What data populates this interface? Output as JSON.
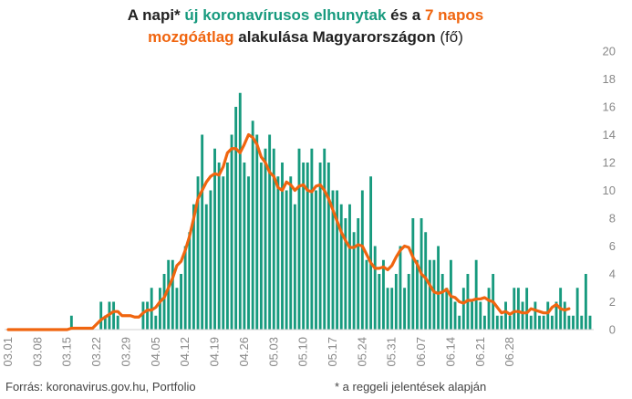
{
  "title": {
    "p1": "A napi* ",
    "p2": "új koronavírusos elhunytak",
    "p3": " és a ",
    "p4": "7 napos",
    "p5": "mozgóátlag",
    "p6": " alakulása Magyarországon",
    "p7": " (fő)"
  },
  "footer": {
    "source": "Forrás: koronavirus.gov.hu, Portfolio",
    "note": "* a reggeli jelentések alapján"
  },
  "colors": {
    "bars": "#179a7e",
    "line": "#f0650f",
    "axis_text": "#888888"
  },
  "chart_data": {
    "type": "bar",
    "title": "A napi* új koronavírusos elhunytak és a 7 napos mozgóátlag alakulása Magyarországon (fő)",
    "x_start": "03.01",
    "x_tick_labels": [
      "03.01",
      "03.08",
      "03.15",
      "03.22",
      "03.29",
      "04.05",
      "04.12",
      "04.19",
      "04.26",
      "05.03",
      "05.10",
      "05.17",
      "05.24",
      "05.31",
      "06.07",
      "06.14",
      "06.21",
      "06.28"
    ],
    "ylim": [
      0,
      20
    ],
    "y_ticks": [
      0,
      2,
      4,
      6,
      8,
      10,
      12,
      14,
      16,
      18,
      20
    ],
    "y_axis_side": "right",
    "grid": false,
    "series": [
      {
        "kind": "bar",
        "values": [
          0,
          0,
          0,
          0,
          0,
          0,
          0,
          0,
          0,
          0,
          0,
          0,
          0,
          0,
          0,
          1,
          0,
          0,
          0,
          0,
          0,
          0,
          2,
          1,
          2,
          2,
          1,
          0,
          0,
          0,
          0,
          0,
          2,
          2,
          3,
          1,
          3,
          4,
          5,
          5,
          3,
          4,
          6,
          7,
          9,
          11,
          14,
          9,
          10,
          13,
          12,
          11,
          12,
          14,
          16,
          17,
          12,
          11,
          15,
          14,
          12,
          13,
          14,
          13,
          11,
          12,
          10,
          11,
          9,
          13,
          12,
          12,
          13,
          10,
          12,
          13,
          12,
          10,
          10,
          9,
          8,
          9,
          7,
          8,
          10,
          5,
          11,
          6,
          4,
          5,
          3,
          3,
          4,
          6,
          3,
          4,
          8,
          5,
          8,
          7,
          5,
          5,
          6,
          4,
          3,
          5,
          2,
          1,
          3,
          4,
          2,
          5,
          2,
          1,
          3,
          4,
          1,
          1,
          2,
          1,
          3,
          3,
          2,
          3,
          1,
          2,
          1,
          1,
          2,
          1,
          2,
          3,
          2,
          1,
          1,
          3,
          1,
          4,
          1
        ]
      },
      {
        "kind": "line",
        "values": [
          0,
          0,
          0,
          0,
          0,
          0,
          0,
          0,
          0,
          0,
          0,
          0,
          0,
          0,
          0,
          0.1,
          0.1,
          0.1,
          0.1,
          0.1,
          0.1,
          0.4,
          0.7,
          0.9,
          1.1,
          1.3,
          1.3,
          1.0,
          1.0,
          1.0,
          0.9,
          0.9,
          1.2,
          1.4,
          1.4,
          1.6,
          2.0,
          2.3,
          3.0,
          3.7,
          4.6,
          4.9,
          5.7,
          6.7,
          8.0,
          9.4,
          10.0,
          10.6,
          11.0,
          11.2,
          11.1,
          11.7,
          12.7,
          13.0,
          13.0,
          12.7,
          13.3,
          14.0,
          13.8,
          13.3,
          12.4,
          12.0,
          11.3,
          11.0,
          10.2,
          10.0,
          10.6,
          10.4,
          10.0,
          10.3,
          10.4,
          10.0,
          9.9,
          10.3,
          10.4,
          10.0,
          9.4,
          8.6,
          7.8,
          7.0,
          6.4,
          5.9,
          5.9,
          6.1,
          6.0,
          5.4,
          4.8,
          4.4,
          4.4,
          4.5,
          4.3,
          4.6,
          5.2,
          5.7,
          6.0,
          5.9,
          5.2,
          4.7,
          4.0,
          3.7,
          3.2,
          2.7,
          2.6,
          2.7,
          2.9,
          2.4,
          2.3,
          2.0,
          1.9,
          2.1,
          2.1,
          2.2,
          2.2,
          2.3,
          2.1,
          2.0,
          1.6,
          1.2,
          1.3,
          1.1,
          1.3,
          1.3,
          1.2,
          1.2,
          1.5,
          1.4,
          1.3,
          1.2,
          1.2,
          1.6,
          1.8,
          1.5,
          1.4,
          1.5
        ]
      }
    ]
  }
}
